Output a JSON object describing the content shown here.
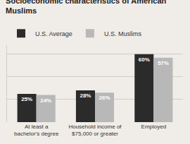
{
  "chart_data": {
    "type": "bar",
    "title": "Socioeconomic characteristics of American\nMuslims",
    "categories": [
      "At least a\nbachelor's degree",
      "Household income of\n$75,000 or greater",
      "Employed"
    ],
    "series": [
      {
        "name": "U.S. Average",
        "color": "#2b2b2b",
        "values": [
          25,
          28,
          60
        ],
        "value_labels": [
          "25%",
          "28%",
          "60%"
        ]
      },
      {
        "name": "U.S. Muslims",
        "color": "#b8b8b8",
        "values": [
          24,
          26,
          57
        ],
        "value_labels": [
          "24%",
          "26%",
          "57%"
        ]
      }
    ],
    "ylim": [
      0,
      68
    ],
    "yticks": [
      20,
      40,
      60
    ],
    "grid": true,
    "tick_labels": "x",
    "data_labels": true,
    "legend": "upper left"
  }
}
